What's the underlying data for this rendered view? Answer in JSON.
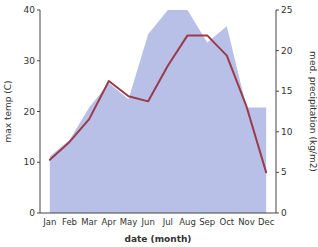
{
  "chart_data": {
    "type": "line",
    "xlabel": "date (month)",
    "ylabel": "max temp (C)",
    "y2label": "med. precipitation (kg/m2)",
    "categories": [
      "Jan",
      "Feb",
      "Mar",
      "Apr",
      "May",
      "Jun",
      "Jul",
      "Aug",
      "Sep",
      "Oct",
      "Nov",
      "Dec"
    ],
    "series": [
      {
        "type": "line",
        "color": "#9b3a4a",
        "values": [
          10.5,
          14.0,
          18.5,
          26.0,
          23.0,
          22.0,
          29.0,
          35.0,
          35.0,
          31.0,
          21.0,
          8.0
        ]
      },
      {
        "type": "area",
        "color": "#b8c0e8",
        "axis": "y2",
        "values": [
          7.0,
          9.0,
          13.0,
          16.0,
          14.0,
          22.0,
          25.0,
          25.0,
          21.0,
          23.0,
          13.0,
          13.0
        ]
      }
    ],
    "ylim": [
      0,
      40
    ],
    "yticks": [
      0,
      10,
      20,
      30,
      40
    ],
    "y2lim": [
      0,
      25
    ],
    "y2ticks": [
      0,
      5,
      10,
      15,
      20,
      25
    ],
    "grid": false
  }
}
